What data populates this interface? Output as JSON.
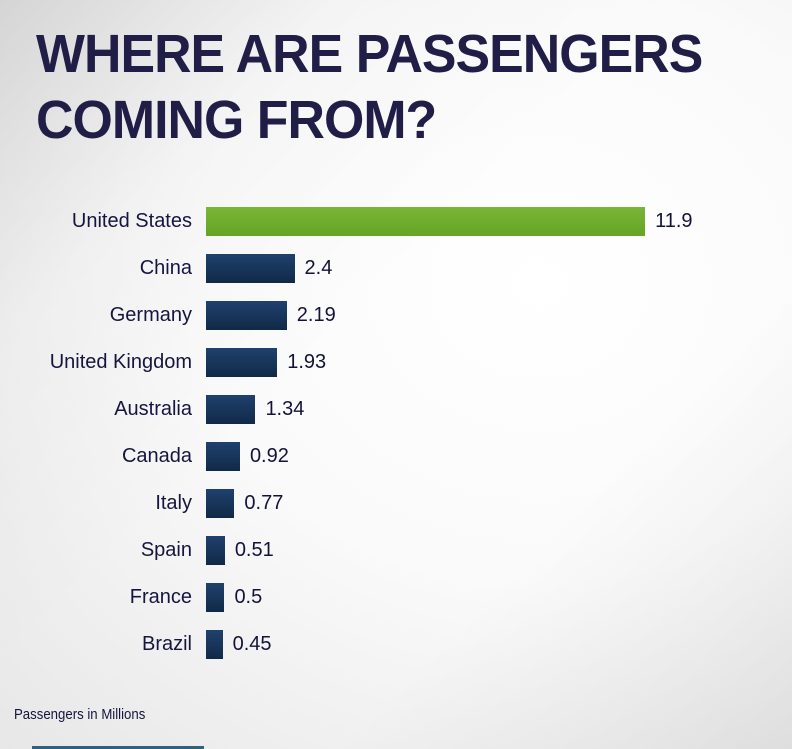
{
  "title": {
    "line1": "WHERE ARE PASSENGERS",
    "line2": "COMING FROM?"
  },
  "footer": {
    "caption": "Passengers in Millions"
  },
  "colors": {
    "title_text": "#201d46",
    "category_label_text": "#15153f",
    "value_label_text": "#13133a",
    "bar_gradient_top": "#1f416e",
    "bar_gradient_bottom": "#112947",
    "highlight_gradient_top": "#79b637",
    "highlight_gradient_bottom": "#66a425",
    "accent_strip": "#33617c"
  },
  "chart_data": {
    "type": "bar",
    "orientation": "horizontal",
    "title": "WHERE ARE PASSENGERS COMING FROM?",
    "categories": [
      "United States",
      "China",
      "Germany",
      "United Kingdom",
      "Australia",
      "Canada",
      "Italy",
      "Spain",
      "France",
      "Brazil"
    ],
    "values": [
      11.9,
      2.4,
      2.19,
      1.93,
      1.34,
      0.92,
      0.77,
      0.51,
      0.5,
      0.45
    ],
    "value_labels": [
      "11.9",
      "2.4",
      "2.19",
      "1.93",
      "1.34",
      "0.92",
      "0.77",
      "0.51",
      "0.5",
      "0.45"
    ],
    "highlight_category": "United States",
    "highlight_color": "#6fb02c",
    "bar_color": "#16335c",
    "xlabel": "Passengers in Millions",
    "xlim": [
      0,
      12.5
    ],
    "grid": false,
    "legend": false,
    "value_label_position": "end-of-bar"
  }
}
